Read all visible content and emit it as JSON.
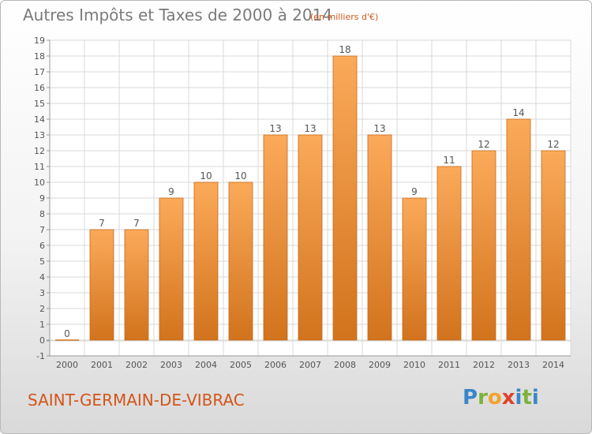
{
  "header": {
    "title": "Autres Impôts et Taxes de 2000 à 2014",
    "subtitle": "(en milliers d'€)"
  },
  "footer": {
    "commune": "SAINT-GERMAIN-DE-VIBRAC",
    "logo_letters": [
      "P",
      "r",
      "o",
      "x",
      "i",
      "t",
      "i"
    ]
  },
  "colors": {
    "bar_light": "#fbaa5a",
    "bar_dark": "#d2731d",
    "bar_stroke": "#c86a18",
    "grid": "#d9d9d9",
    "axis": "#9a9a9a",
    "label": "#555555",
    "title": "#7a7a7a",
    "accent": "#d2551a"
  },
  "chart_data": {
    "type": "bar",
    "categories": [
      "2000",
      "2001",
      "2002",
      "2003",
      "2004",
      "2005",
      "2006",
      "2007",
      "2008",
      "2009",
      "2010",
      "2011",
      "2012",
      "2013",
      "2014"
    ],
    "values": [
      0,
      7,
      7,
      9,
      10,
      10,
      13,
      13,
      18,
      13,
      9,
      11,
      12,
      14,
      12
    ],
    "data_labels": [
      "0",
      "7",
      "7",
      "9",
      "10",
      "10",
      "13",
      "13",
      "18",
      "13",
      "9",
      "11",
      "12",
      "14",
      "12"
    ],
    "title": "Autres Impôts et Taxes de 2000 à 2014",
    "subtitle": "(en milliers d'€)",
    "xlabel": "",
    "ylabel": "",
    "ylim": [
      -1,
      19
    ],
    "yticks": [
      "-1",
      "",
      "0",
      "1",
      "2",
      "3",
      "4",
      "5",
      "6",
      "7",
      "8",
      "9",
      "10",
      "11",
      "12",
      "13",
      "14",
      "15",
      "16",
      "17",
      "18",
      "19"
    ],
    "ytick_values": [
      -1,
      -0.05,
      0,
      1,
      2,
      3,
      4,
      5,
      6,
      7,
      8,
      9,
      10,
      11,
      12,
      13,
      14,
      15,
      16,
      17,
      18,
      19
    ],
    "grid": true,
    "legend": "none"
  }
}
